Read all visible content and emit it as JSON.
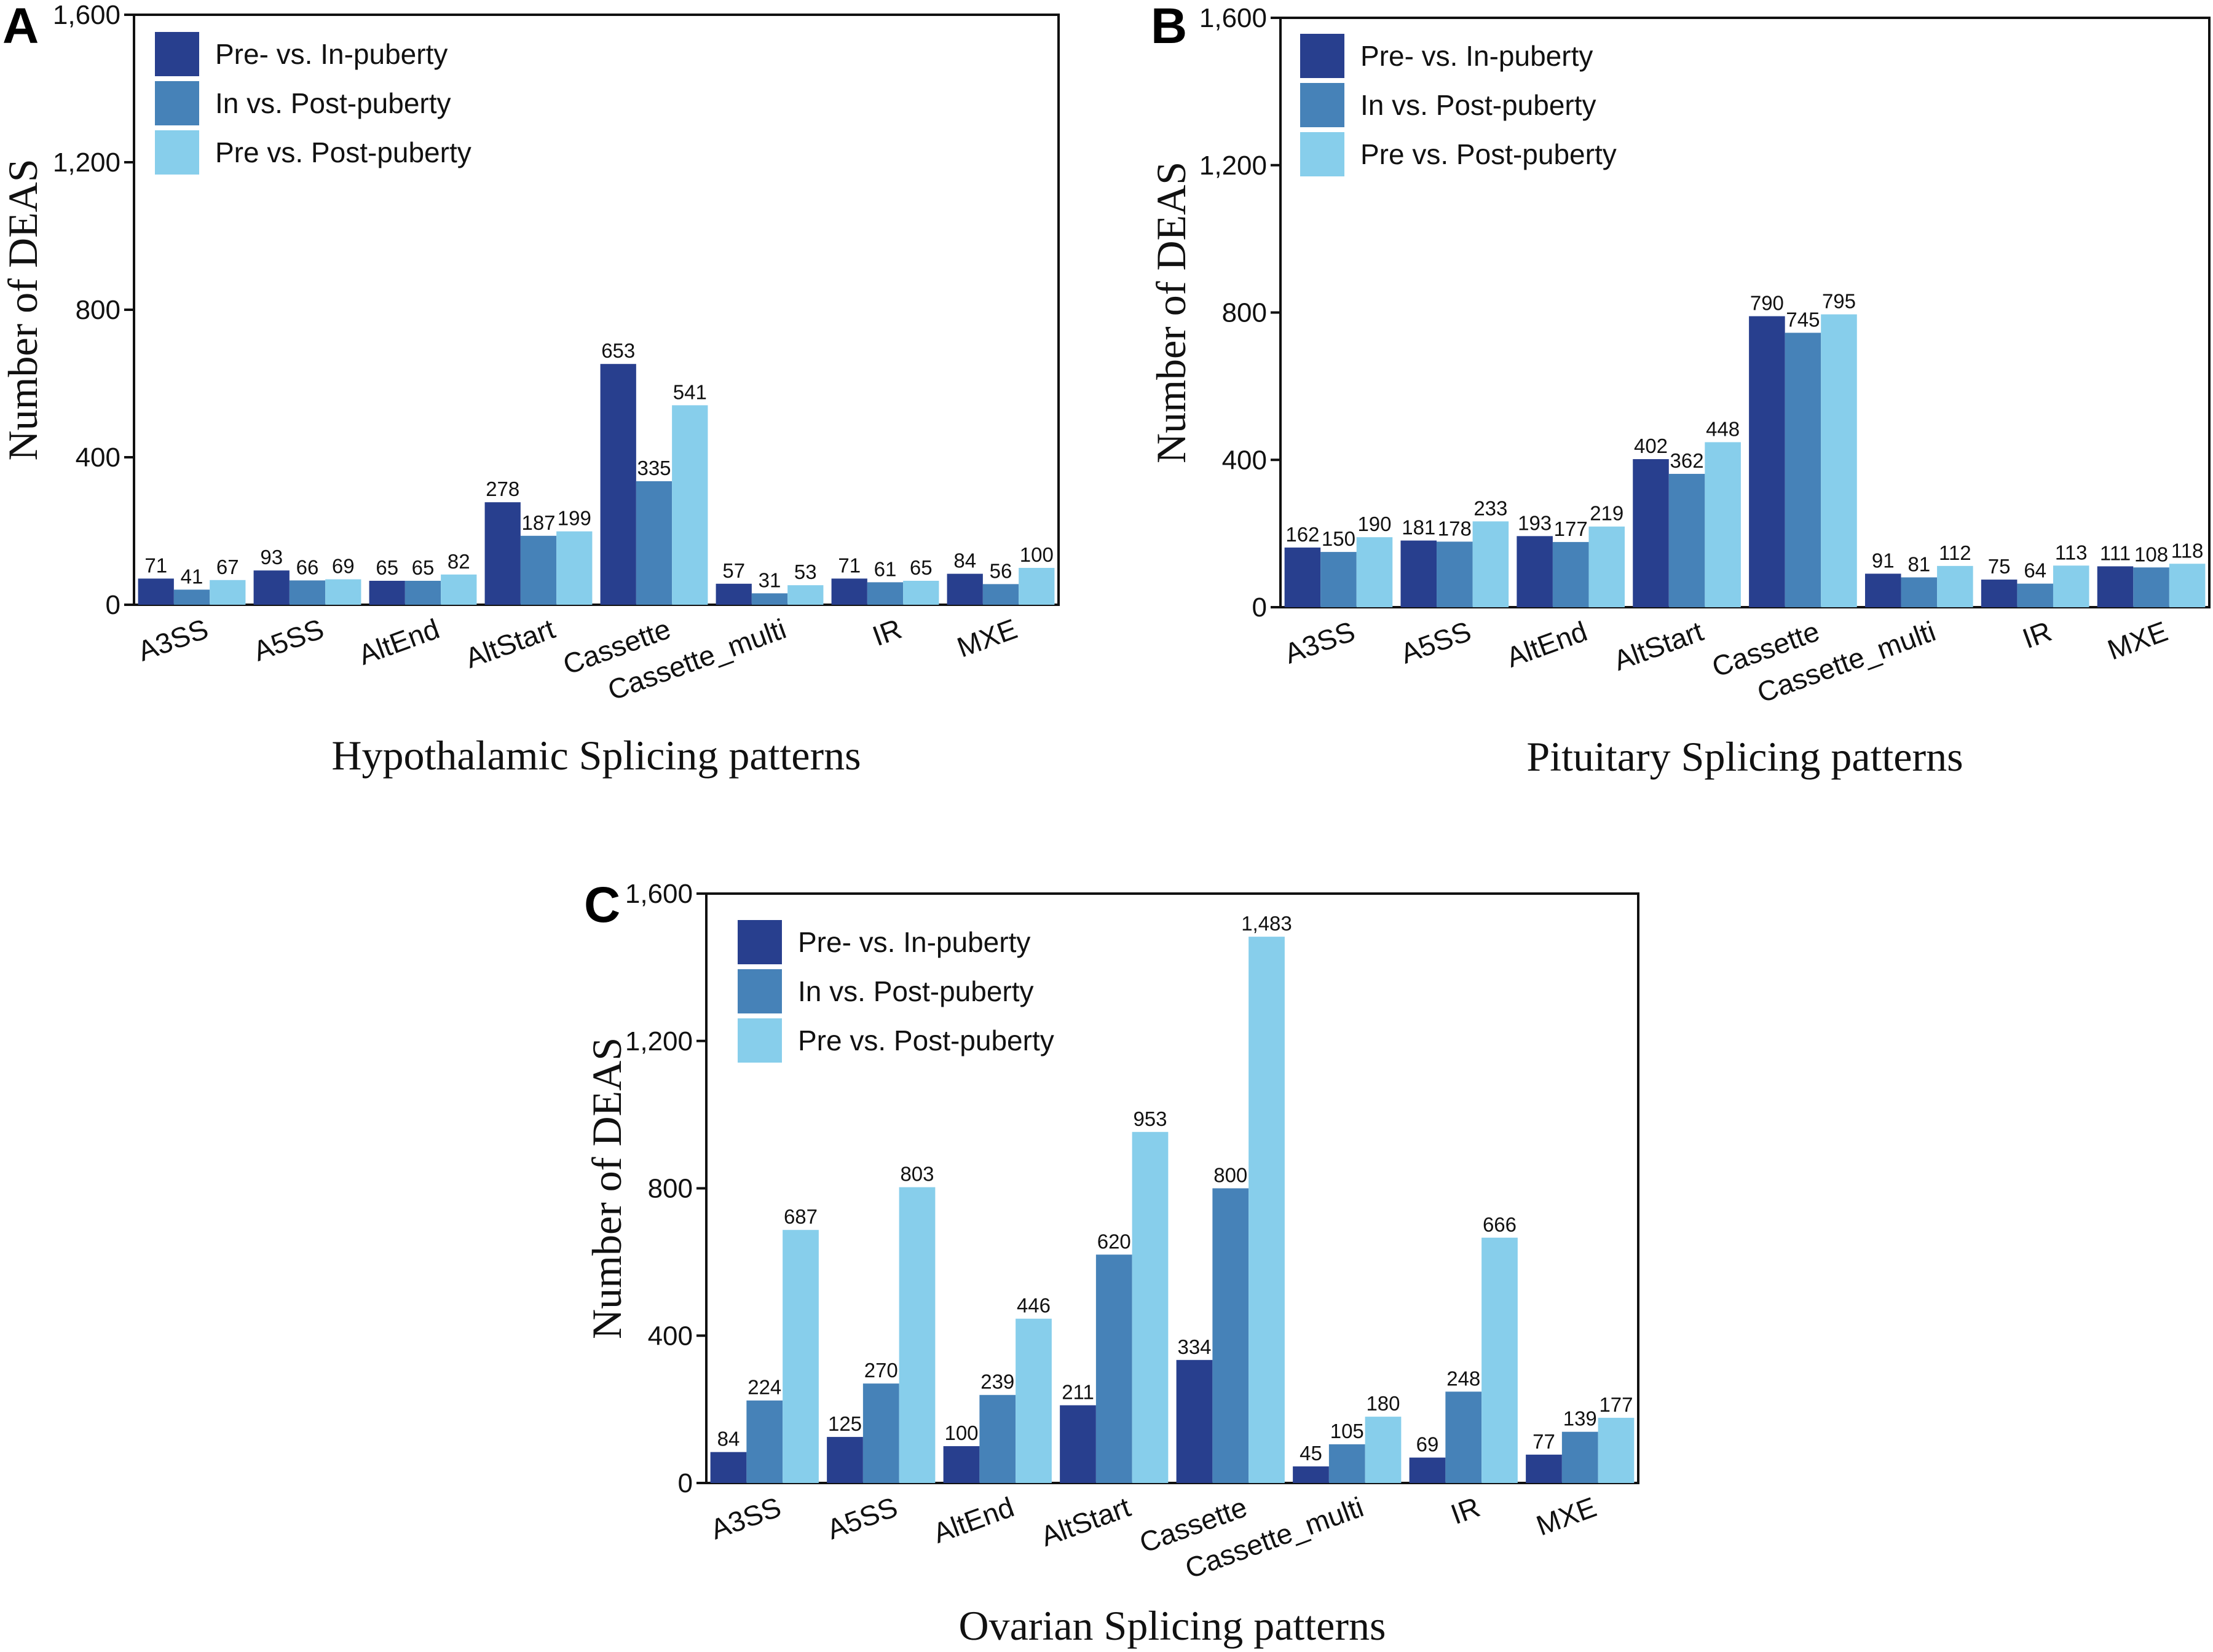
{
  "colors": [
    "#283f8e",
    "#4682b8",
    "#87ceeb"
  ],
  "chart_data": [
    {
      "type": "bar",
      "panel_label": "A",
      "xlabel": "Hypothalamic Splicing patterns",
      "ylabel": "Number of DEAS",
      "ylim": [
        0,
        1600
      ],
      "yticks": [
        0,
        400,
        800,
        1200,
        1600
      ],
      "ytick_labels": [
        "0",
        "400",
        "800",
        "1,200",
        "1,600"
      ],
      "categories": [
        "A3SS",
        "A5SS",
        "AltEnd",
        "AltStart",
        "Cassette",
        "Cassette_multi",
        "IR",
        "MXE"
      ],
      "series": [
        {
          "name": "Pre- vs. In-puberty",
          "values": [
            71,
            93,
            65,
            278,
            653,
            57,
            71,
            84
          ],
          "labels": [
            "71",
            "93",
            "65",
            "278",
            "653",
            "57",
            "71",
            "84"
          ]
        },
        {
          "name": "In vs. Post-puberty",
          "values": [
            41,
            66,
            65,
            187,
            335,
            31,
            61,
            56
          ],
          "labels": [
            "41",
            "66",
            "65",
            "187",
            "335",
            "31",
            "61",
            "56"
          ]
        },
        {
          "name": "Pre vs. Post-puberty",
          "values": [
            67,
            69,
            82,
            199,
            541,
            53,
            65,
            100
          ],
          "labels": [
            "67",
            "69",
            "82",
            "199",
            "541",
            "53",
            "65",
            "100"
          ]
        }
      ],
      "legend": "top-left"
    },
    {
      "type": "bar",
      "panel_label": "B",
      "xlabel": "Pituitary Splicing patterns",
      "ylabel": "Number of DEAS",
      "ylim": [
        0,
        1600
      ],
      "yticks": [
        0,
        400,
        800,
        1200,
        1600
      ],
      "ytick_labels": [
        "0",
        "400",
        "800",
        "1,200",
        "1,600"
      ],
      "categories": [
        "A3SS",
        "A5SS",
        "AltEnd",
        "AltStart",
        "Cassette",
        "Cassette_multi",
        "IR",
        "MXE"
      ],
      "series": [
        {
          "name": "Pre- vs. In-puberty",
          "values": [
            162,
            181,
            193,
            402,
            790,
            91,
            75,
            111
          ],
          "labels": [
            "162",
            "181",
            "193",
            "402",
            "790",
            "91",
            "75",
            "111"
          ]
        },
        {
          "name": "In vs. Post-puberty",
          "values": [
            150,
            178,
            177,
            362,
            745,
            81,
            64,
            108
          ],
          "labels": [
            "150",
            "178",
            "177",
            "362",
            "745",
            "81",
            "64",
            "108"
          ]
        },
        {
          "name": "Pre vs. Post-puberty",
          "values": [
            190,
            233,
            219,
            448,
            795,
            112,
            113,
            118
          ],
          "labels": [
            "190",
            "233",
            "219",
            "448",
            "795",
            "112",
            "113",
            "118"
          ]
        }
      ],
      "legend": "top-left"
    },
    {
      "type": "bar",
      "panel_label": "C",
      "xlabel": "Ovarian Splicing patterns",
      "ylabel": "Number of DEAS",
      "ylim": [
        0,
        1600
      ],
      "yticks": [
        0,
        400,
        800,
        1200,
        1600
      ],
      "ytick_labels": [
        "0",
        "400",
        "800",
        "1,200",
        "1,600"
      ],
      "categories": [
        "A3SS",
        "A5SS",
        "AltEnd",
        "AltStart",
        "Cassette",
        "Cassette_multi",
        "IR",
        "MXE"
      ],
      "series": [
        {
          "name": "Pre- vs. In-puberty",
          "values": [
            84,
            125,
            100,
            211,
            334,
            45,
            69,
            77
          ],
          "labels": [
            "84",
            "125",
            "100",
            "211",
            "334",
            "45",
            "69",
            "77"
          ]
        },
        {
          "name": "In vs. Post-puberty",
          "values": [
            224,
            270,
            239,
            620,
            800,
            105,
            248,
            139
          ],
          "labels": [
            "224",
            "270",
            "239",
            "620",
            "800",
            "105",
            "248",
            "139"
          ]
        },
        {
          "name": "Pre vs. Post-puberty",
          "values": [
            687,
            803,
            446,
            953,
            1483,
            180,
            666,
            177
          ],
          "labels": [
            "687",
            "803",
            "446",
            "953",
            "1,483",
            "180",
            "666",
            "177"
          ]
        }
      ],
      "legend": "top-left"
    }
  ]
}
